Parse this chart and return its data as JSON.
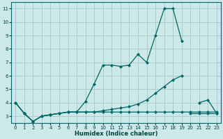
{
  "title": "",
  "xlabel": "Humidex (Indice chaleur)",
  "background_color": "#cce8e8",
  "grid_color": "#aacccc",
  "line_color": "#006666",
  "x_values": [
    0,
    1,
    2,
    3,
    4,
    5,
    6,
    7,
    8,
    9,
    10,
    11,
    12,
    13,
    14,
    15,
    16,
    17,
    18,
    19,
    20,
    21,
    22,
    23
  ],
  "line1_y": [
    4.0,
    3.2,
    2.6,
    3.0,
    3.1,
    3.2,
    3.3,
    3.3,
    4.1,
    5.4,
    6.8,
    6.8,
    6.7,
    6.8,
    7.6,
    7.0,
    9.0,
    11.0,
    11.0,
    8.6,
    null,
    4.0,
    4.2,
    3.2
  ],
  "line2_y": [
    4.0,
    3.2,
    2.6,
    3.0,
    3.1,
    3.2,
    3.3,
    3.3,
    3.3,
    3.3,
    3.4,
    3.5,
    3.6,
    3.7,
    3.9,
    4.2,
    4.7,
    5.2,
    5.7,
    6.0,
    3.2,
    3.2,
    3.2,
    3.2
  ],
  "line3_y": [
    4.0,
    3.2,
    2.6,
    3.0,
    3.1,
    3.2,
    3.3,
    3.3,
    3.3,
    3.3,
    3.3,
    3.3,
    3.3,
    3.3,
    3.3,
    3.3,
    3.3,
    3.3,
    3.3,
    3.3,
    3.3,
    3.3,
    3.3,
    3.3
  ],
  "ylim": [
    2.5,
    11.5
  ],
  "xlim": [
    -0.5,
    23.5
  ],
  "yticks": [
    3,
    4,
    5,
    6,
    7,
    8,
    9,
    10,
    11
  ],
  "xticks": [
    0,
    1,
    2,
    3,
    4,
    5,
    6,
    7,
    8,
    9,
    10,
    11,
    12,
    13,
    14,
    15,
    16,
    17,
    18,
    19,
    20,
    21,
    22,
    23
  ]
}
